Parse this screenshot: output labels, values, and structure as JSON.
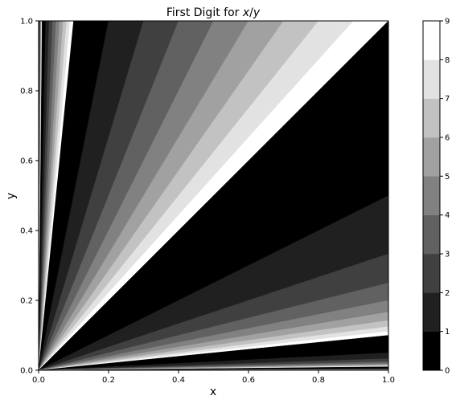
{
  "chart_data": {
    "type": "filled-contour",
    "title": {
      "prefix": "First Digit for ",
      "expr_x": "x",
      "expr_sep": "/",
      "expr_y": "y"
    },
    "xlabel": "x",
    "ylabel": "y",
    "xlim": [
      0.0,
      1.0
    ],
    "ylim": [
      0.0,
      1.0
    ],
    "xticks": [
      "0.0",
      "0.2",
      "0.4",
      "0.6",
      "0.8",
      "1.0"
    ],
    "yticks": [
      "0.0",
      "0.2",
      "0.4",
      "0.6",
      "0.8",
      "1.0"
    ],
    "x_tick_values": [
      0.0,
      0.2,
      0.4,
      0.6,
      0.8,
      1.0
    ],
    "y_tick_values": [
      0.0,
      0.2,
      0.4,
      0.6,
      0.8,
      1.0
    ],
    "grid": false,
    "colormap": "gray",
    "levels": [
      0,
      1,
      2,
      3,
      4,
      5,
      6,
      7,
      8,
      9
    ],
    "level_colors": [
      "#000000",
      "#202020",
      "#404040",
      "#616161",
      "#818181",
      "#a1a1a1",
      "#c2c2c2",
      "#e2e2e2",
      "#ffffff"
    ],
    "colorbar_ticks": [
      "0",
      "1",
      "2",
      "3",
      "4",
      "5",
      "6",
      "7",
      "8",
      "9"
    ],
    "function": "first significant digit of x/y"
  }
}
